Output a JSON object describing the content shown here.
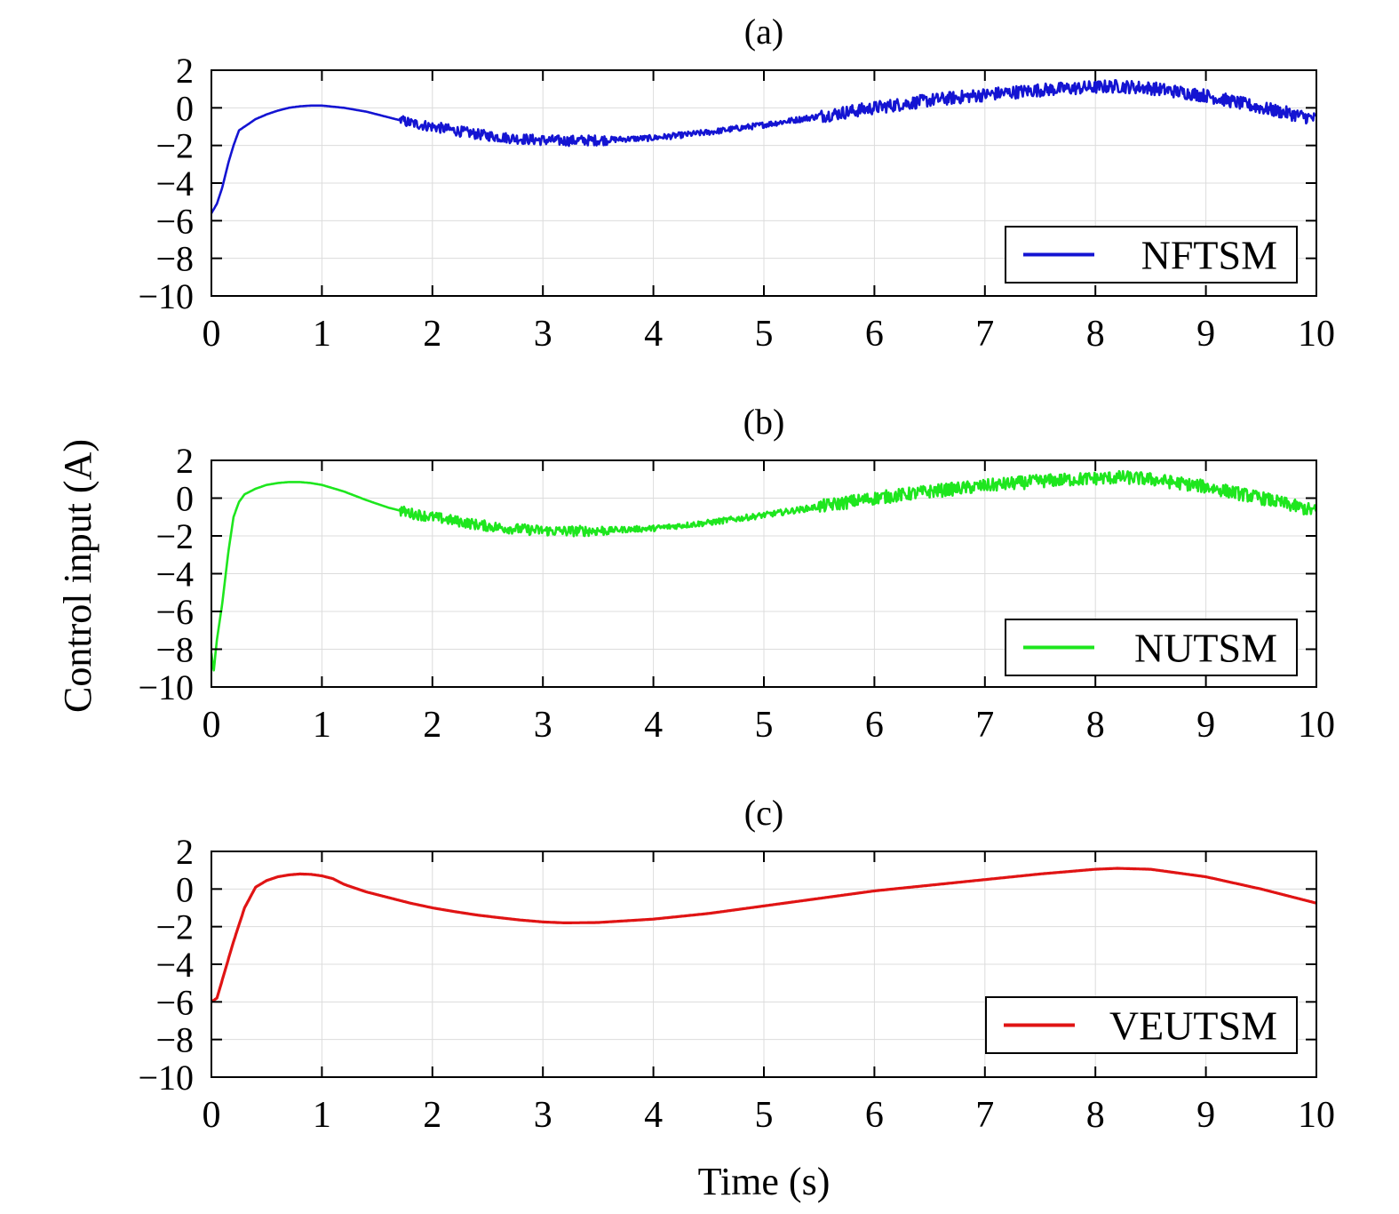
{
  "figure": {
    "ylabel": "Control input (A)",
    "xlabel": "Time (s)"
  },
  "chart_data": [
    {
      "type": "line",
      "title": "(a)",
      "xlabel": "",
      "ylabel": "",
      "xlim": [
        0,
        10
      ],
      "ylim": [
        -10,
        2
      ],
      "xticks": [
        "0",
        "1",
        "2",
        "3",
        "4",
        "5",
        "6",
        "7",
        "8",
        "9",
        "10"
      ],
      "yticks": [
        "2",
        "0",
        "−2",
        "−4",
        "−6",
        "−8",
        "−10"
      ],
      "ytick_values": [
        2,
        0,
        -2,
        -4,
        -6,
        -8,
        -10
      ],
      "grid": true,
      "legend_position": "bottom-right",
      "series": [
        {
          "name": "NFTSM",
          "color": "#1414d2",
          "x": [
            0,
            0.02,
            0.05,
            0.1,
            0.15,
            0.2,
            0.25,
            0.3,
            0.4,
            0.5,
            0.6,
            0.7,
            0.8,
            0.9,
            1.0,
            1.2,
            1.4,
            1.6,
            1.8,
            2.0,
            2.2,
            2.4,
            2.6,
            2.8,
            3.0,
            3.2,
            3.5,
            4.0,
            4.5,
            5.0,
            5.5,
            6.0,
            6.5,
            7.0,
            7.5,
            8.0,
            8.2,
            8.5,
            9.0,
            9.5,
            10.0
          ],
          "y": [
            -5.6,
            -5.4,
            -5.1,
            -4.2,
            -3.0,
            -2.0,
            -1.2,
            -1.0,
            -0.6,
            -0.35,
            -0.15,
            0.0,
            0.08,
            0.12,
            0.12,
            0.0,
            -0.2,
            -0.5,
            -0.8,
            -1.0,
            -1.2,
            -1.4,
            -1.55,
            -1.65,
            -1.72,
            -1.75,
            -1.72,
            -1.6,
            -1.3,
            -0.9,
            -0.45,
            0.0,
            0.4,
            0.7,
            0.95,
            1.1,
            1.15,
            1.05,
            0.65,
            0.0,
            -0.6
          ],
          "noise_amplitude": 0.35
        }
      ]
    },
    {
      "type": "line",
      "title": "(b)",
      "xlabel": "",
      "ylabel": "",
      "xlim": [
        0,
        10
      ],
      "ylim": [
        -10,
        2
      ],
      "xticks": [
        "0",
        "1",
        "2",
        "3",
        "4",
        "5",
        "6",
        "7",
        "8",
        "9",
        "10"
      ],
      "yticks": [
        "2",
        "0",
        "−2",
        "−4",
        "−6",
        "−8",
        "−10"
      ],
      "ytick_values": [
        2,
        0,
        -2,
        -4,
        -6,
        -8,
        -10
      ],
      "grid": true,
      "legend_position": "bottom-right",
      "series": [
        {
          "name": "NUTSM",
          "color": "#1ee61e",
          "x": [
            0,
            0.02,
            0.05,
            0.1,
            0.15,
            0.2,
            0.25,
            0.3,
            0.4,
            0.5,
            0.6,
            0.7,
            0.8,
            0.9,
            1.0,
            1.2,
            1.4,
            1.6,
            1.8,
            2.0,
            2.2,
            2.4,
            2.6,
            2.8,
            3.0,
            3.2,
            3.5,
            4.0,
            4.5,
            5.0,
            5.5,
            6.0,
            6.5,
            7.0,
            7.5,
            8.0,
            8.25,
            8.5,
            9.0,
            9.5,
            10.0
          ],
          "y": [
            -8.2,
            -9.2,
            -7.5,
            -5.5,
            -3.0,
            -1.0,
            -0.2,
            0.2,
            0.5,
            0.7,
            0.8,
            0.85,
            0.85,
            0.8,
            0.7,
            0.35,
            -0.1,
            -0.5,
            -0.8,
            -1.0,
            -1.2,
            -1.4,
            -1.55,
            -1.65,
            -1.72,
            -1.75,
            -1.72,
            -1.6,
            -1.3,
            -0.9,
            -0.45,
            0.0,
            0.35,
            0.65,
            0.9,
            1.05,
            1.1,
            1.0,
            0.6,
            0.0,
            -0.7
          ],
          "noise_amplitude": 0.35
        }
      ]
    },
    {
      "type": "line",
      "title": "(c)",
      "xlabel": "Time (s)",
      "ylabel": "",
      "xlim": [
        0,
        10
      ],
      "ylim": [
        -10,
        2
      ],
      "xticks": [
        "0",
        "1",
        "2",
        "3",
        "4",
        "5",
        "6",
        "7",
        "8",
        "9",
        "10"
      ],
      "yticks": [
        "2",
        "0",
        "−2",
        "−4",
        "−6",
        "−8",
        "−10"
      ],
      "ytick_values": [
        2,
        0,
        -2,
        -4,
        -6,
        -8,
        -10
      ],
      "grid": true,
      "legend_position": "bottom-right",
      "series": [
        {
          "name": "VEUTSM",
          "color": "#e01414",
          "x": [
            0,
            0.05,
            0.1,
            0.2,
            0.3,
            0.4,
            0.5,
            0.6,
            0.7,
            0.8,
            0.9,
            1.0,
            1.1,
            1.2,
            1.4,
            1.6,
            1.8,
            2.0,
            2.2,
            2.4,
            2.6,
            2.8,
            3.0,
            3.2,
            3.5,
            4.0,
            4.5,
            5.0,
            5.5,
            6.0,
            6.5,
            7.0,
            7.5,
            8.0,
            8.2,
            8.5,
            9.0,
            9.5,
            10.0
          ],
          "y": [
            -6.0,
            -5.8,
            -4.8,
            -2.8,
            -1.0,
            0.1,
            0.45,
            0.65,
            0.75,
            0.8,
            0.78,
            0.7,
            0.55,
            0.25,
            -0.15,
            -0.45,
            -0.75,
            -1.0,
            -1.2,
            -1.38,
            -1.52,
            -1.65,
            -1.75,
            -1.8,
            -1.78,
            -1.6,
            -1.3,
            -0.9,
            -0.5,
            -0.1,
            0.2,
            0.5,
            0.8,
            1.05,
            1.1,
            1.05,
            0.65,
            0.0,
            -0.75
          ],
          "noise_amplitude": 0
        }
      ]
    }
  ]
}
